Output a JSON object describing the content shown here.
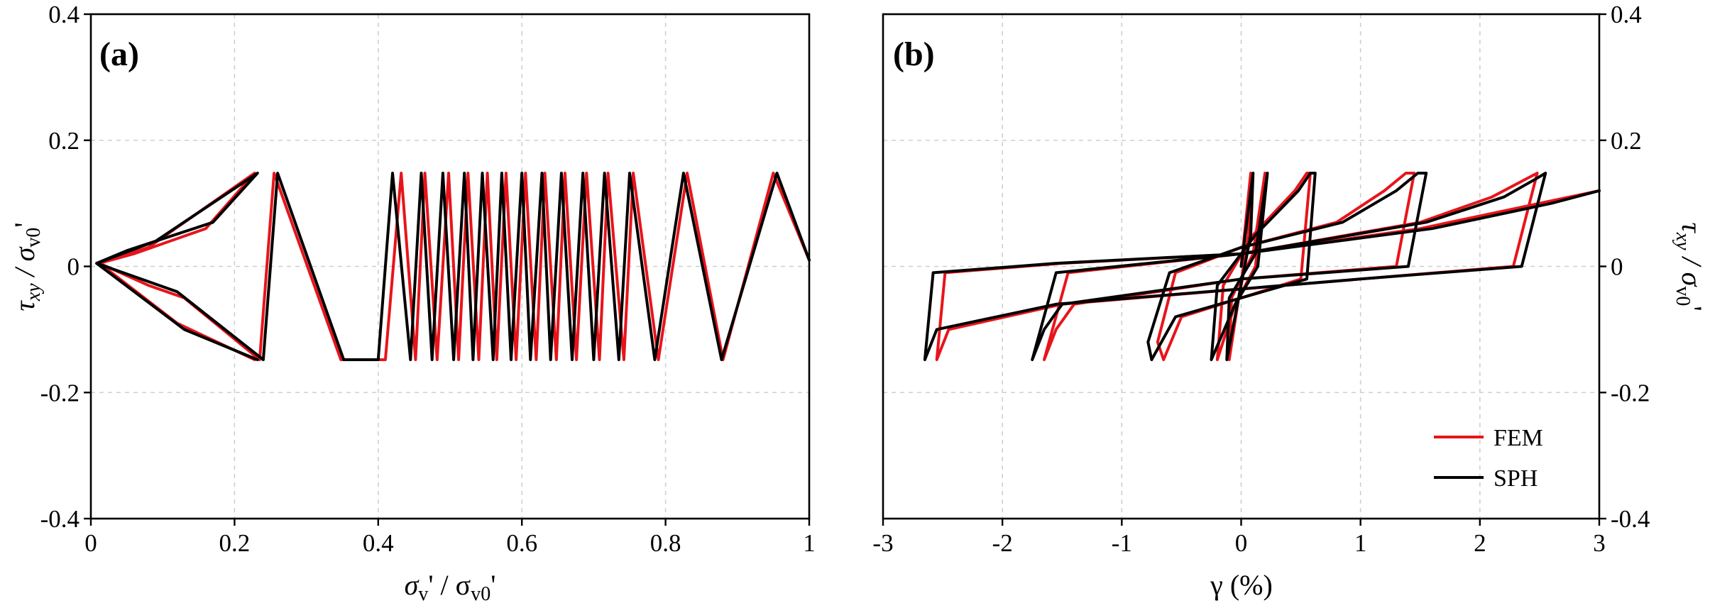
{
  "colors": {
    "fem": "#e8141b",
    "sph": "#000000",
    "grid": "#cfcfcf"
  },
  "chart_data": [
    {
      "type": "line",
      "panel": "(a)",
      "xlabel_main": "σ",
      "xlabel_sub1": "v",
      "xlabel_mid": "' / σ",
      "xlabel_sub2": "v0",
      "xlabel_end": "'",
      "ylabel_main": "τ",
      "ylabel_sub1": "xy",
      "ylabel_mid": " / σ",
      "ylabel_sub2": "v0",
      "ylabel_end": "'",
      "xlim": [
        0,
        1
      ],
      "ylim": [
        -0.4,
        0.4
      ],
      "xticks": [
        0,
        0.2,
        0.4,
        0.6,
        0.8,
        1
      ],
      "xtick_labels": [
        "0",
        "0.2",
        "0.4",
        "0.6",
        "0.8",
        "1"
      ],
      "yticks": [
        -0.4,
        -0.2,
        0,
        0.2,
        0.4
      ],
      "ytick_labels": [
        "-0.4",
        "-0.2",
        "0",
        "0.2",
        "0.4"
      ],
      "grid": true,
      "series": [
        {
          "name": "FEM",
          "color": "#e8141b",
          "x": [
            1.0,
            0.95,
            0.88,
            0.83,
            0.79,
            0.755,
            0.742,
            0.72,
            0.708,
            0.69,
            0.676,
            0.66,
            0.648,
            0.632,
            0.62,
            0.605,
            0.592,
            0.578,
            0.565,
            0.552,
            0.54,
            0.525,
            0.512,
            0.498,
            0.482,
            0.465,
            0.452,
            0.432,
            0.41,
            0.348,
            0.255,
            0.235,
            0.13,
            0.08,
            0.012,
            0.08,
            0.228,
            0.16,
            0.06,
            0.012,
            0.12,
            0.228
          ],
          "y": [
            0.01,
            0.148,
            -0.148,
            0.148,
            -0.148,
            0.148,
            -0.148,
            0.148,
            -0.148,
            0.148,
            -0.148,
            0.148,
            -0.148,
            0.148,
            -0.148,
            0.148,
            -0.148,
            0.148,
            -0.148,
            0.148,
            -0.148,
            0.148,
            -0.148,
            0.148,
            -0.148,
            0.148,
            -0.148,
            0.148,
            -0.148,
            -0.148,
            0.148,
            -0.148,
            -0.05,
            -0.03,
            0.005,
            0.03,
            0.148,
            0.06,
            0.02,
            0.005,
            -0.09,
            -0.148
          ]
        },
        {
          "name": "SPH",
          "color": "#000000",
          "x": [
            1.0,
            0.955,
            0.878,
            0.825,
            0.785,
            0.75,
            0.735,
            0.715,
            0.7,
            0.685,
            0.67,
            0.655,
            0.64,
            0.628,
            0.612,
            0.6,
            0.585,
            0.572,
            0.56,
            0.545,
            0.532,
            0.52,
            0.505,
            0.49,
            0.475,
            0.46,
            0.445,
            0.42,
            0.4,
            0.352,
            0.26,
            0.24,
            0.12,
            0.07,
            0.008,
            0.09,
            0.232,
            0.17,
            0.05,
            0.008,
            0.13,
            0.232
          ],
          "y": [
            0.01,
            0.148,
            -0.148,
            0.148,
            -0.148,
            0.148,
            -0.148,
            0.148,
            -0.148,
            0.148,
            -0.148,
            0.148,
            -0.148,
            0.148,
            -0.148,
            0.148,
            -0.148,
            0.148,
            -0.148,
            0.148,
            -0.148,
            0.148,
            -0.148,
            0.148,
            -0.148,
            0.148,
            -0.148,
            0.148,
            -0.148,
            -0.148,
            0.148,
            -0.148,
            -0.04,
            -0.02,
            0.005,
            0.04,
            0.148,
            0.07,
            0.025,
            0.005,
            -0.1,
            -0.148
          ]
        }
      ]
    },
    {
      "type": "line",
      "panel": "(b)",
      "xlabel_main": "γ (%)",
      "ylabel_main": "τ",
      "ylabel_sub1": "xy",
      "ylabel_mid": " / σ",
      "ylabel_sub2": "v0",
      "ylabel_end": "'",
      "xlim": [
        -3,
        3
      ],
      "ylim": [
        -0.4,
        0.4
      ],
      "xticks": [
        -3,
        -2,
        -1,
        0,
        1,
        2,
        3
      ],
      "xtick_labels": [
        "-3",
        "-2",
        "-1",
        "0",
        "1",
        "2",
        "3"
      ],
      "yticks": [
        -0.4,
        -0.2,
        0,
        0.2,
        0.4
      ],
      "ytick_labels": [
        "-0.4",
        "-0.2",
        "0",
        "0.2",
        "0.4"
      ],
      "grid": true,
      "legend": {
        "position": "bottom-right",
        "entries": [
          "FEM",
          "SPH"
        ]
      },
      "series": [
        {
          "name": "FEM",
          "color": "#e8141b",
          "x": [
            0.0,
            0.08,
            0.06,
            -0.1,
            -0.08,
            0.1,
            0.2,
            0.12,
            -0.05,
            -0.2,
            -0.15,
            0.1,
            0.45,
            0.55,
            0.58,
            0.5,
            0.0,
            -0.5,
            -0.65,
            -0.7,
            -0.55,
            0.0,
            0.8,
            1.2,
            1.38,
            1.45,
            1.3,
            0.0,
            -1.4,
            -1.55,
            -1.65,
            -1.45,
            0.0,
            1.5,
            2.1,
            2.4,
            2.48,
            2.28,
            1.0,
            -1.5,
            -2.45,
            -2.55,
            -2.48,
            -1.5,
            0.0,
            1.5,
            2.5,
            3.0
          ],
          "y": [
            0.0,
            0.148,
            0.05,
            -0.148,
            -0.05,
            0.02,
            0.148,
            0.0,
            -0.06,
            -0.148,
            -0.03,
            0.05,
            0.12,
            0.148,
            0.148,
            -0.02,
            -0.05,
            -0.08,
            -0.148,
            -0.12,
            -0.01,
            0.03,
            0.07,
            0.12,
            0.148,
            0.148,
            0.0,
            -0.02,
            -0.06,
            -0.1,
            -0.148,
            -0.01,
            0.02,
            0.07,
            0.11,
            0.14,
            0.148,
            0.0,
            -0.02,
            -0.06,
            -0.1,
            -0.148,
            -0.01,
            0.005,
            0.02,
            0.06,
            0.1,
            0.12
          ]
        },
        {
          "name": "SPH",
          "color": "#000000",
          "x": [
            0.0,
            0.1,
            0.08,
            -0.12,
            -0.1,
            0.12,
            0.22,
            0.14,
            -0.05,
            -0.25,
            -0.2,
            0.12,
            0.48,
            0.58,
            0.62,
            0.55,
            0.0,
            -0.55,
            -0.75,
            -0.78,
            -0.6,
            0.0,
            0.85,
            1.3,
            1.48,
            1.55,
            1.4,
            0.0,
            -1.5,
            -1.65,
            -1.75,
            -1.55,
            0.0,
            1.55,
            2.2,
            2.48,
            2.55,
            2.35,
            1.0,
            -1.55,
            -2.55,
            -2.65,
            -2.58,
            -1.55,
            0.0,
            1.6,
            2.6,
            3.0
          ],
          "y": [
            0.0,
            0.148,
            0.05,
            -0.148,
            -0.05,
            0.02,
            0.148,
            0.0,
            -0.06,
            -0.148,
            -0.03,
            0.05,
            0.12,
            0.148,
            0.148,
            -0.02,
            -0.05,
            -0.08,
            -0.148,
            -0.12,
            -0.01,
            0.03,
            0.07,
            0.12,
            0.148,
            0.148,
            0.0,
            -0.02,
            -0.06,
            -0.1,
            -0.148,
            -0.01,
            0.02,
            0.07,
            0.11,
            0.14,
            0.148,
            0.0,
            -0.02,
            -0.06,
            -0.1,
            -0.148,
            -0.01,
            0.005,
            0.02,
            0.06,
            0.1,
            0.12
          ]
        }
      ]
    }
  ]
}
